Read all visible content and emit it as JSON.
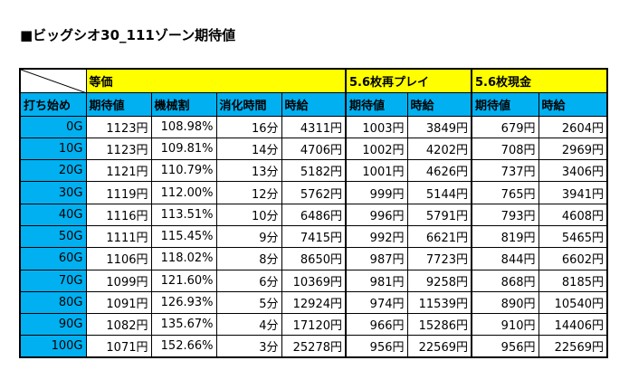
{
  "title": "■ビッグシオ30_111ゾーン期待値",
  "table": {
    "groups": [
      "等価",
      "5.6枚再プレイ",
      "5.6枚現金"
    ],
    "columns": [
      "打ち始め",
      "期待値",
      "機械割",
      "消化時間",
      "時給",
      "期待値",
      "時給",
      "期待値",
      "時給"
    ],
    "rows": [
      [
        "0G",
        "1123円",
        "108.98%",
        "16分",
        "4311円",
        "1003円",
        "3849円",
        "679円",
        "2604円"
      ],
      [
        "10G",
        "1123円",
        "109.81%",
        "14分",
        "4706円",
        "1002円",
        "4202円",
        "708円",
        "2969円"
      ],
      [
        "20G",
        "1121円",
        "110.79%",
        "13分",
        "5182円",
        "1001円",
        "4626円",
        "737円",
        "3406円"
      ],
      [
        "30G",
        "1119円",
        "112.00%",
        "12分",
        "5762円",
        "999円",
        "5144円",
        "765円",
        "3941円"
      ],
      [
        "40G",
        "1116円",
        "113.51%",
        "10分",
        "6486円",
        "996円",
        "5791円",
        "793円",
        "4608円"
      ],
      [
        "50G",
        "1111円",
        "115.45%",
        "9分",
        "7415円",
        "992円",
        "6621円",
        "819円",
        "5465円"
      ],
      [
        "60G",
        "1106円",
        "118.02%",
        "8分",
        "8650円",
        "987円",
        "7723円",
        "844円",
        "6602円"
      ],
      [
        "70G",
        "1099円",
        "121.60%",
        "6分",
        "10369円",
        "981円",
        "9258円",
        "868円",
        "8185円"
      ],
      [
        "80G",
        "1091円",
        "126.93%",
        "5分",
        "12924円",
        "974円",
        "11539円",
        "890円",
        "10540円"
      ],
      [
        "90G",
        "1082円",
        "135.67%",
        "4分",
        "17120円",
        "966円",
        "15286円",
        "910円",
        "14406円"
      ],
      [
        "100G",
        "1071円",
        "152.66%",
        "3分",
        "25278円",
        "956円",
        "22569円",
        "956円",
        "22569円"
      ]
    ]
  }
}
